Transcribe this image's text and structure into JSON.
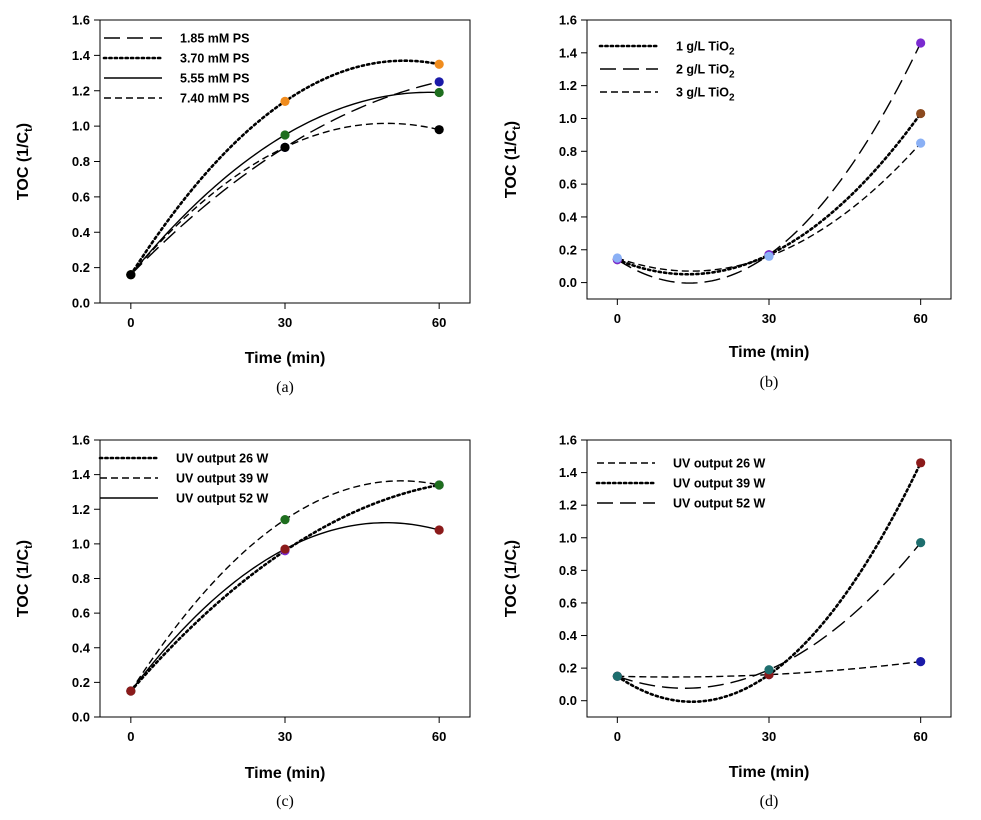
{
  "chart_data": [
    {
      "type": "scatter",
      "panel_label": "(a)",
      "xlabel": "Time (min)",
      "ylabel": "TOC (1/C_t)",
      "x_ticks": [
        "0",
        "30",
        "60"
      ],
      "y_ticks": [
        "0.0",
        "0.2",
        "0.4",
        "0.6",
        "0.8",
        "1.0",
        "1.2",
        "1.4",
        "1.6"
      ],
      "xlim": [
        -6,
        66
      ],
      "ylim": [
        0,
        1.6
      ],
      "legend_position": "top-left",
      "series": [
        {
          "name": "1.85 mM PS",
          "x": [
            0,
            30,
            60
          ],
          "y": [
            0.16,
            0.88,
            1.25
          ],
          "dash": "long",
          "marker_color": "#1a1aa8"
        },
        {
          "name": "3.70 mM PS",
          "x": [
            0,
            30,
            60
          ],
          "y": [
            0.16,
            1.14,
            1.35
          ],
          "dash": "dot",
          "marker_color": "#f08c1e"
        },
        {
          "name": "5.55 mM PS",
          "x": [
            0,
            30,
            60
          ],
          "y": [
            0.16,
            0.95,
            1.19
          ],
          "dash": "solid",
          "marker_color": "#1e6e1e"
        },
        {
          "name": "7.40 mM PS",
          "x": [
            0,
            30,
            60
          ],
          "y": [
            0.16,
            0.88,
            0.98
          ],
          "dash": "short",
          "marker_color": "#000000"
        }
      ]
    },
    {
      "type": "scatter",
      "panel_label": "(b)",
      "xlabel": "Time (min)",
      "ylabel": "TOC (1/C_t)",
      "x_ticks": [
        "0",
        "30",
        "60"
      ],
      "y_ticks": [
        "0.0",
        "0.2",
        "0.4",
        "0.6",
        "0.8",
        "1.0",
        "1.2",
        "1.4",
        "1.6"
      ],
      "xlim": [
        -6,
        66
      ],
      "ylim": [
        -0.1,
        1.6
      ],
      "legend_position": "top-left",
      "series": [
        {
          "name": "1 g/L TiO",
          "name_sub": "2",
          "x": [
            0,
            30,
            60
          ],
          "y": [
            0.14,
            0.17,
            1.03
          ],
          "dash": "dot",
          "marker_color": "#8b4a1f"
        },
        {
          "name": "2 g/L TiO",
          "name_sub": "2",
          "x": [
            0,
            30,
            60
          ],
          "y": [
            0.14,
            0.17,
            1.46
          ],
          "dash": "long",
          "marker_color": "#7a2ad0"
        },
        {
          "name": "3 g/L TiO",
          "name_sub": "2",
          "x": [
            0,
            30,
            60
          ],
          "y": [
            0.15,
            0.16,
            0.85
          ],
          "dash": "short",
          "marker_color": "#8ab0f5"
        }
      ]
    },
    {
      "type": "scatter",
      "panel_label": "(c)",
      "xlabel": "Time (min)",
      "ylabel": "TOC (1/C_t)",
      "x_ticks": [
        "0",
        "30",
        "60"
      ],
      "y_ticks": [
        "0.0",
        "0.2",
        "0.4",
        "0.6",
        "0.8",
        "1.0",
        "1.2",
        "1.4",
        "1.6"
      ],
      "xlim": [
        -6,
        66
      ],
      "ylim": [
        0,
        1.6
      ],
      "legend_position": "top-left",
      "series": [
        {
          "name": "UV output 26 W",
          "x": [
            0,
            30,
            60
          ],
          "y": [
            0.15,
            0.96,
            1.34
          ],
          "dash": "dot",
          "marker_color": "#7a2ad0"
        },
        {
          "name": "UV output 39 W",
          "x": [
            0,
            30,
            60
          ],
          "y": [
            0.15,
            1.14,
            1.34
          ],
          "dash": "short",
          "marker_color": "#1e6e1e"
        },
        {
          "name": "UV output 52 W",
          "x": [
            0,
            30,
            60
          ],
          "y": [
            0.15,
            0.97,
            1.08
          ],
          "dash": "solid",
          "marker_color": "#8b1a1a"
        }
      ]
    },
    {
      "type": "scatter",
      "panel_label": "(d)",
      "xlabel": "Time (min)",
      "ylabel": "TOC (1/C_t)",
      "x_ticks": [
        "0",
        "30",
        "60"
      ],
      "y_ticks": [
        "0.0",
        "0.2",
        "0.4",
        "0.6",
        "0.8",
        "1.0",
        "1.2",
        "1.4",
        "1.6"
      ],
      "xlim": [
        -6,
        66
      ],
      "ylim": [
        -0.1,
        1.6
      ],
      "legend_position": "top-left",
      "series": [
        {
          "name": "UV output 26 W",
          "x": [
            0,
            30,
            60
          ],
          "y": [
            0.15,
            0.16,
            0.24
          ],
          "dash": "short",
          "marker_color": "#1a1aa8"
        },
        {
          "name": "UV output 39 W",
          "x": [
            0,
            30,
            60
          ],
          "y": [
            0.15,
            0.16,
            1.46
          ],
          "dash": "dot",
          "marker_color": "#8b1a1a"
        },
        {
          "name": "UV output 52 W",
          "x": [
            0,
            30,
            60
          ],
          "y": [
            0.15,
            0.19,
            0.97
          ],
          "dash": "long",
          "marker_color": "#1e6e6e"
        }
      ]
    }
  ]
}
